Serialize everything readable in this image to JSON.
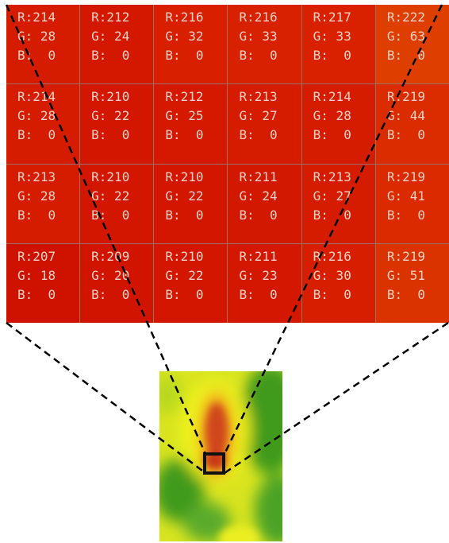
{
  "pixel_grid": {
    "rows": [
      [
        {
          "r": "R:214",
          "g": "G: 28",
          "b": "B:  0",
          "color": "#d61c00"
        },
        {
          "r": "R:212",
          "g": "G: 24",
          "b": "B:  0",
          "color": "#d41800"
        },
        {
          "r": "R:216",
          "g": "G: 32",
          "b": "B:  0",
          "color": "#d82000"
        },
        {
          "r": "R:216",
          "g": "G: 33",
          "b": "B:  0",
          "color": "#d82100"
        },
        {
          "r": "R:217",
          "g": "G: 33",
          "b": "B:  0",
          "color": "#d92100"
        },
        {
          "r": "R:222",
          "g": "G: 63",
          "b": "B:  0",
          "color": "#de3f00"
        }
      ],
      [
        {
          "r": "R:214",
          "g": "G: 28",
          "b": "B:  0",
          "color": "#d61c00"
        },
        {
          "r": "R:210",
          "g": "G: 22",
          "b": "B:  0",
          "color": "#d21600"
        },
        {
          "r": "R:212",
          "g": "G: 25",
          "b": "B:  0",
          "color": "#d41900"
        },
        {
          "r": "R:213",
          "g": "G: 27",
          "b": "B:  0",
          "color": "#d51b00"
        },
        {
          "r": "R:214",
          "g": "G: 28",
          "b": "B:  0",
          "color": "#d61c00"
        },
        {
          "r": "R:219",
          "g": "G: 44",
          "b": "B:  0",
          "color": "#db2c00"
        }
      ],
      [
        {
          "r": "R:213",
          "g": "G: 28",
          "b": "B:  0",
          "color": "#d51c00"
        },
        {
          "r": "R:210",
          "g": "G: 22",
          "b": "B:  0",
          "color": "#d21600"
        },
        {
          "r": "R:210",
          "g": "G: 22",
          "b": "B:  0",
          "color": "#d21600"
        },
        {
          "r": "R:211",
          "g": "G: 24",
          "b": "B:  0",
          "color": "#d31800"
        },
        {
          "r": "R:213",
          "g": "G: 27",
          "b": "B:  0",
          "color": "#d51b00"
        },
        {
          "r": "R:219",
          "g": "G: 41",
          "b": "B:  0",
          "color": "#db2900"
        }
      ],
      [
        {
          "r": "R:207",
          "g": "G: 18",
          "b": "B:  0",
          "color": "#cf1200"
        },
        {
          "r": "R:209",
          "g": "G: 20",
          "b": "B:  0",
          "color": "#d11400"
        },
        {
          "r": "R:210",
          "g": "G: 22",
          "b": "B:  0",
          "color": "#d21600"
        },
        {
          "r": "R:211",
          "g": "G: 23",
          "b": "B:  0",
          "color": "#d31700"
        },
        {
          "r": "R:216",
          "g": "G: 30",
          "b": "B:  0",
          "color": "#d81e00"
        },
        {
          "r": "R:219",
          "g": "G: 51",
          "b": "B:  0",
          "color": "#db3300"
        }
      ]
    ]
  },
  "heatmap": {
    "colors": {
      "green": "#3f9a1e",
      "yellow": "#e6ee1a",
      "orange": "#f08a1a",
      "red": "#d03a12"
    }
  }
}
